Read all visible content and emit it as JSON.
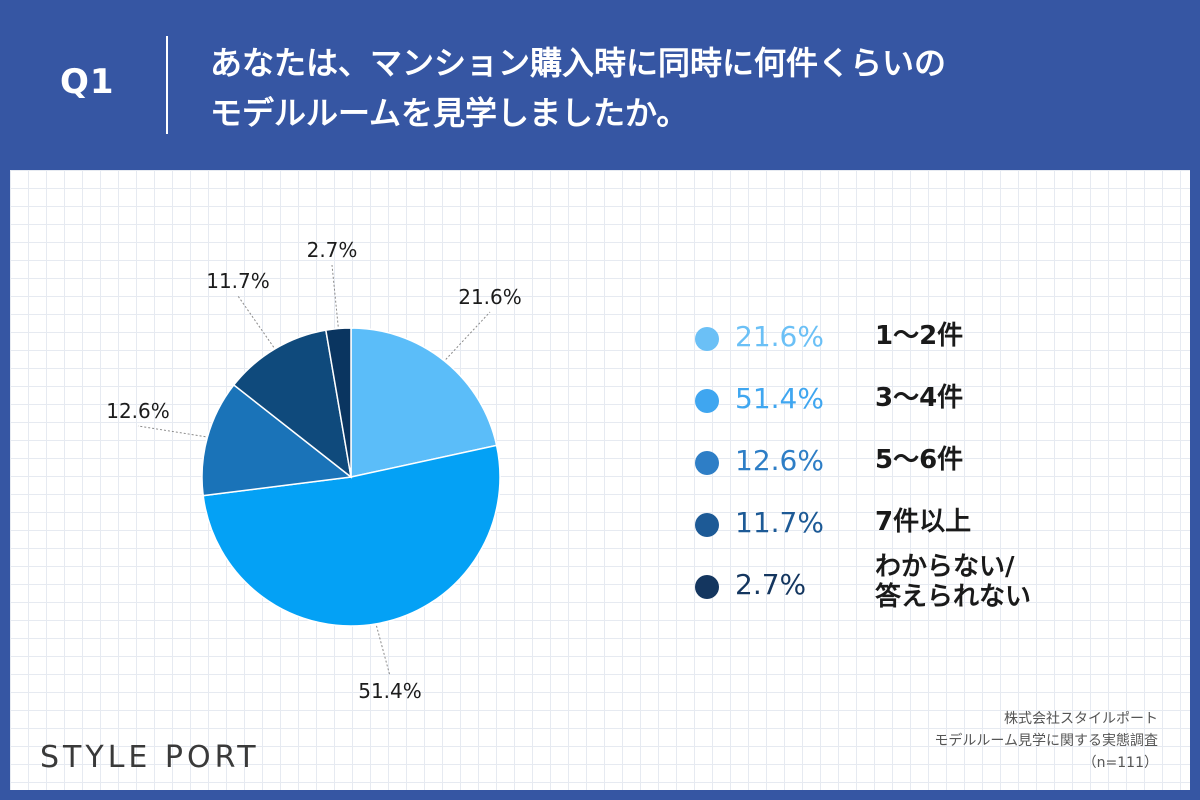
{
  "header": {
    "q_label": "Q1",
    "title_line1": "あなたは、マンション購入時に同時に何件くらいの",
    "title_line2": "モデルルームを見学しましたか。"
  },
  "colors": {
    "page_bg": "#3656a3",
    "text_dark": "#1a1a1a"
  },
  "chart_data": {
    "type": "pie",
    "start": "12 o'clock, clockwise",
    "slices": [
      {
        "label": "1〜2件",
        "value": 21.6,
        "display": "21.6%",
        "color": "#5bbdf9"
      },
      {
        "label": "3〜4件",
        "value": 51.4,
        "display": "51.4%",
        "color": "#04a1f5"
      },
      {
        "label": "5〜6件",
        "value": 12.6,
        "display": "12.6%",
        "color": "#1a73b8"
      },
      {
        "label": "7件以上",
        "value": 11.7,
        "display": "11.7%",
        "color": "#0f4a7c"
      },
      {
        "label": "わからない/答えられない",
        "value": 2.7,
        "display": "2.7%",
        "color": "#0a3560"
      }
    ]
  },
  "legend": {
    "items": [
      {
        "value": "21.6%",
        "cat_line1": "1〜2件",
        "cat_line2": "",
        "color": "#6bc0f6"
      },
      {
        "value": "51.4%",
        "cat_line1": "3〜4件",
        "cat_line2": "",
        "color": "#3fa6f0"
      },
      {
        "value": "12.6%",
        "cat_line1": "5〜6件",
        "cat_line2": "",
        "color": "#2e7ec6"
      },
      {
        "value": "11.7%",
        "cat_line1": "7件以上",
        "cat_line2": "",
        "color": "#1d5a96"
      },
      {
        "value": "2.7%",
        "cat_line1": "わからない/",
        "cat_line2": "答えられない",
        "color": "#14365f"
      }
    ]
  },
  "footer": {
    "logo": "STYLE PORT",
    "source_line1": "株式会社スタイルポート",
    "source_line2": "モデルルーム見学に関する実態調査",
    "source_line3": "（n=111）"
  }
}
